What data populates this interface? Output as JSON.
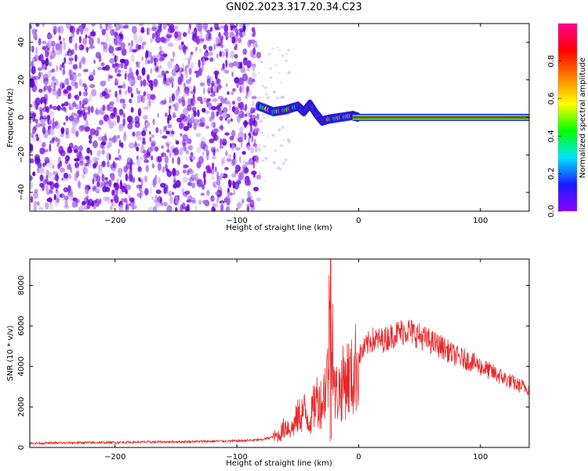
{
  "title": "GN02.2023.317.20.34.C23",
  "chart_data": [
    {
      "type": "heatmap",
      "xlabel": "Height of straight line (km)",
      "ylabel": "Frequency (Hz)",
      "xlim": [
        -270,
        140
      ],
      "ylim": [
        -50,
        50
      ],
      "xticks": [
        -200,
        -100,
        0,
        100
      ],
      "yticks": [
        -40,
        -20,
        0,
        20,
        40
      ],
      "noise_region_x": [
        -270,
        -82
      ],
      "signal_line_y": 0,
      "signal_track": [
        {
          "x": -82,
          "y": 6
        },
        {
          "x": -70,
          "y": 3
        },
        {
          "x": -60,
          "y": 4
        },
        {
          "x": -50,
          "y": 6
        },
        {
          "x": -45,
          "y": 3
        },
        {
          "x": -40,
          "y": 7
        },
        {
          "x": -35,
          "y": 2
        },
        {
          "x": -30,
          "y": -2
        },
        {
          "x": -25,
          "y": -1
        },
        {
          "x": -15,
          "y": 0
        },
        {
          "x": -5,
          "y": 1
        },
        {
          "x": 0,
          "y": 0
        }
      ],
      "colorbar": {
        "label": "Normalized spectral amplitude",
        "range": [
          0,
          1
        ],
        "ticks": [
          0.0,
          0.2,
          0.4,
          0.6,
          0.8
        ],
        "colors": [
          "#8c00ff",
          "#1b1bff",
          "#00e5ff",
          "#00ff00",
          "#ffff00",
          "#ff8000",
          "#ff0000",
          "#ff0090"
        ]
      }
    },
    {
      "type": "line",
      "xlabel": "Height of straight line (km)",
      "ylabel": "SNR (10 * v/v)",
      "xlim": [
        -270,
        140
      ],
      "ylim": [
        0,
        9300
      ],
      "xticks": [
        -200,
        -100,
        0,
        100
      ],
      "yticks": [
        0,
        2000,
        4000,
        6000,
        8000
      ],
      "color": "#e8282a",
      "x": [
        -270,
        -250,
        -200,
        -150,
        -100,
        -80,
        -65,
        -60,
        -55,
        -50,
        -45,
        -40,
        -35,
        -30,
        -25,
        -23,
        -20,
        -15,
        -10,
        -5,
        0,
        5,
        10,
        20,
        30,
        40,
        50,
        60,
        70,
        80,
        90,
        100,
        110,
        120,
        130,
        140
      ],
      "values": [
        200,
        220,
        250,
        280,
        320,
        380,
        600,
        1100,
        900,
        1500,
        1800,
        1300,
        2400,
        2200,
        3800,
        9300,
        2600,
        2900,
        3500,
        3400,
        4500,
        4900,
        5300,
        5300,
        5600,
        5800,
        5500,
        5200,
        4900,
        4500,
        4300,
        4000,
        3700,
        3400,
        3100,
        2900
      ]
    }
  ]
}
